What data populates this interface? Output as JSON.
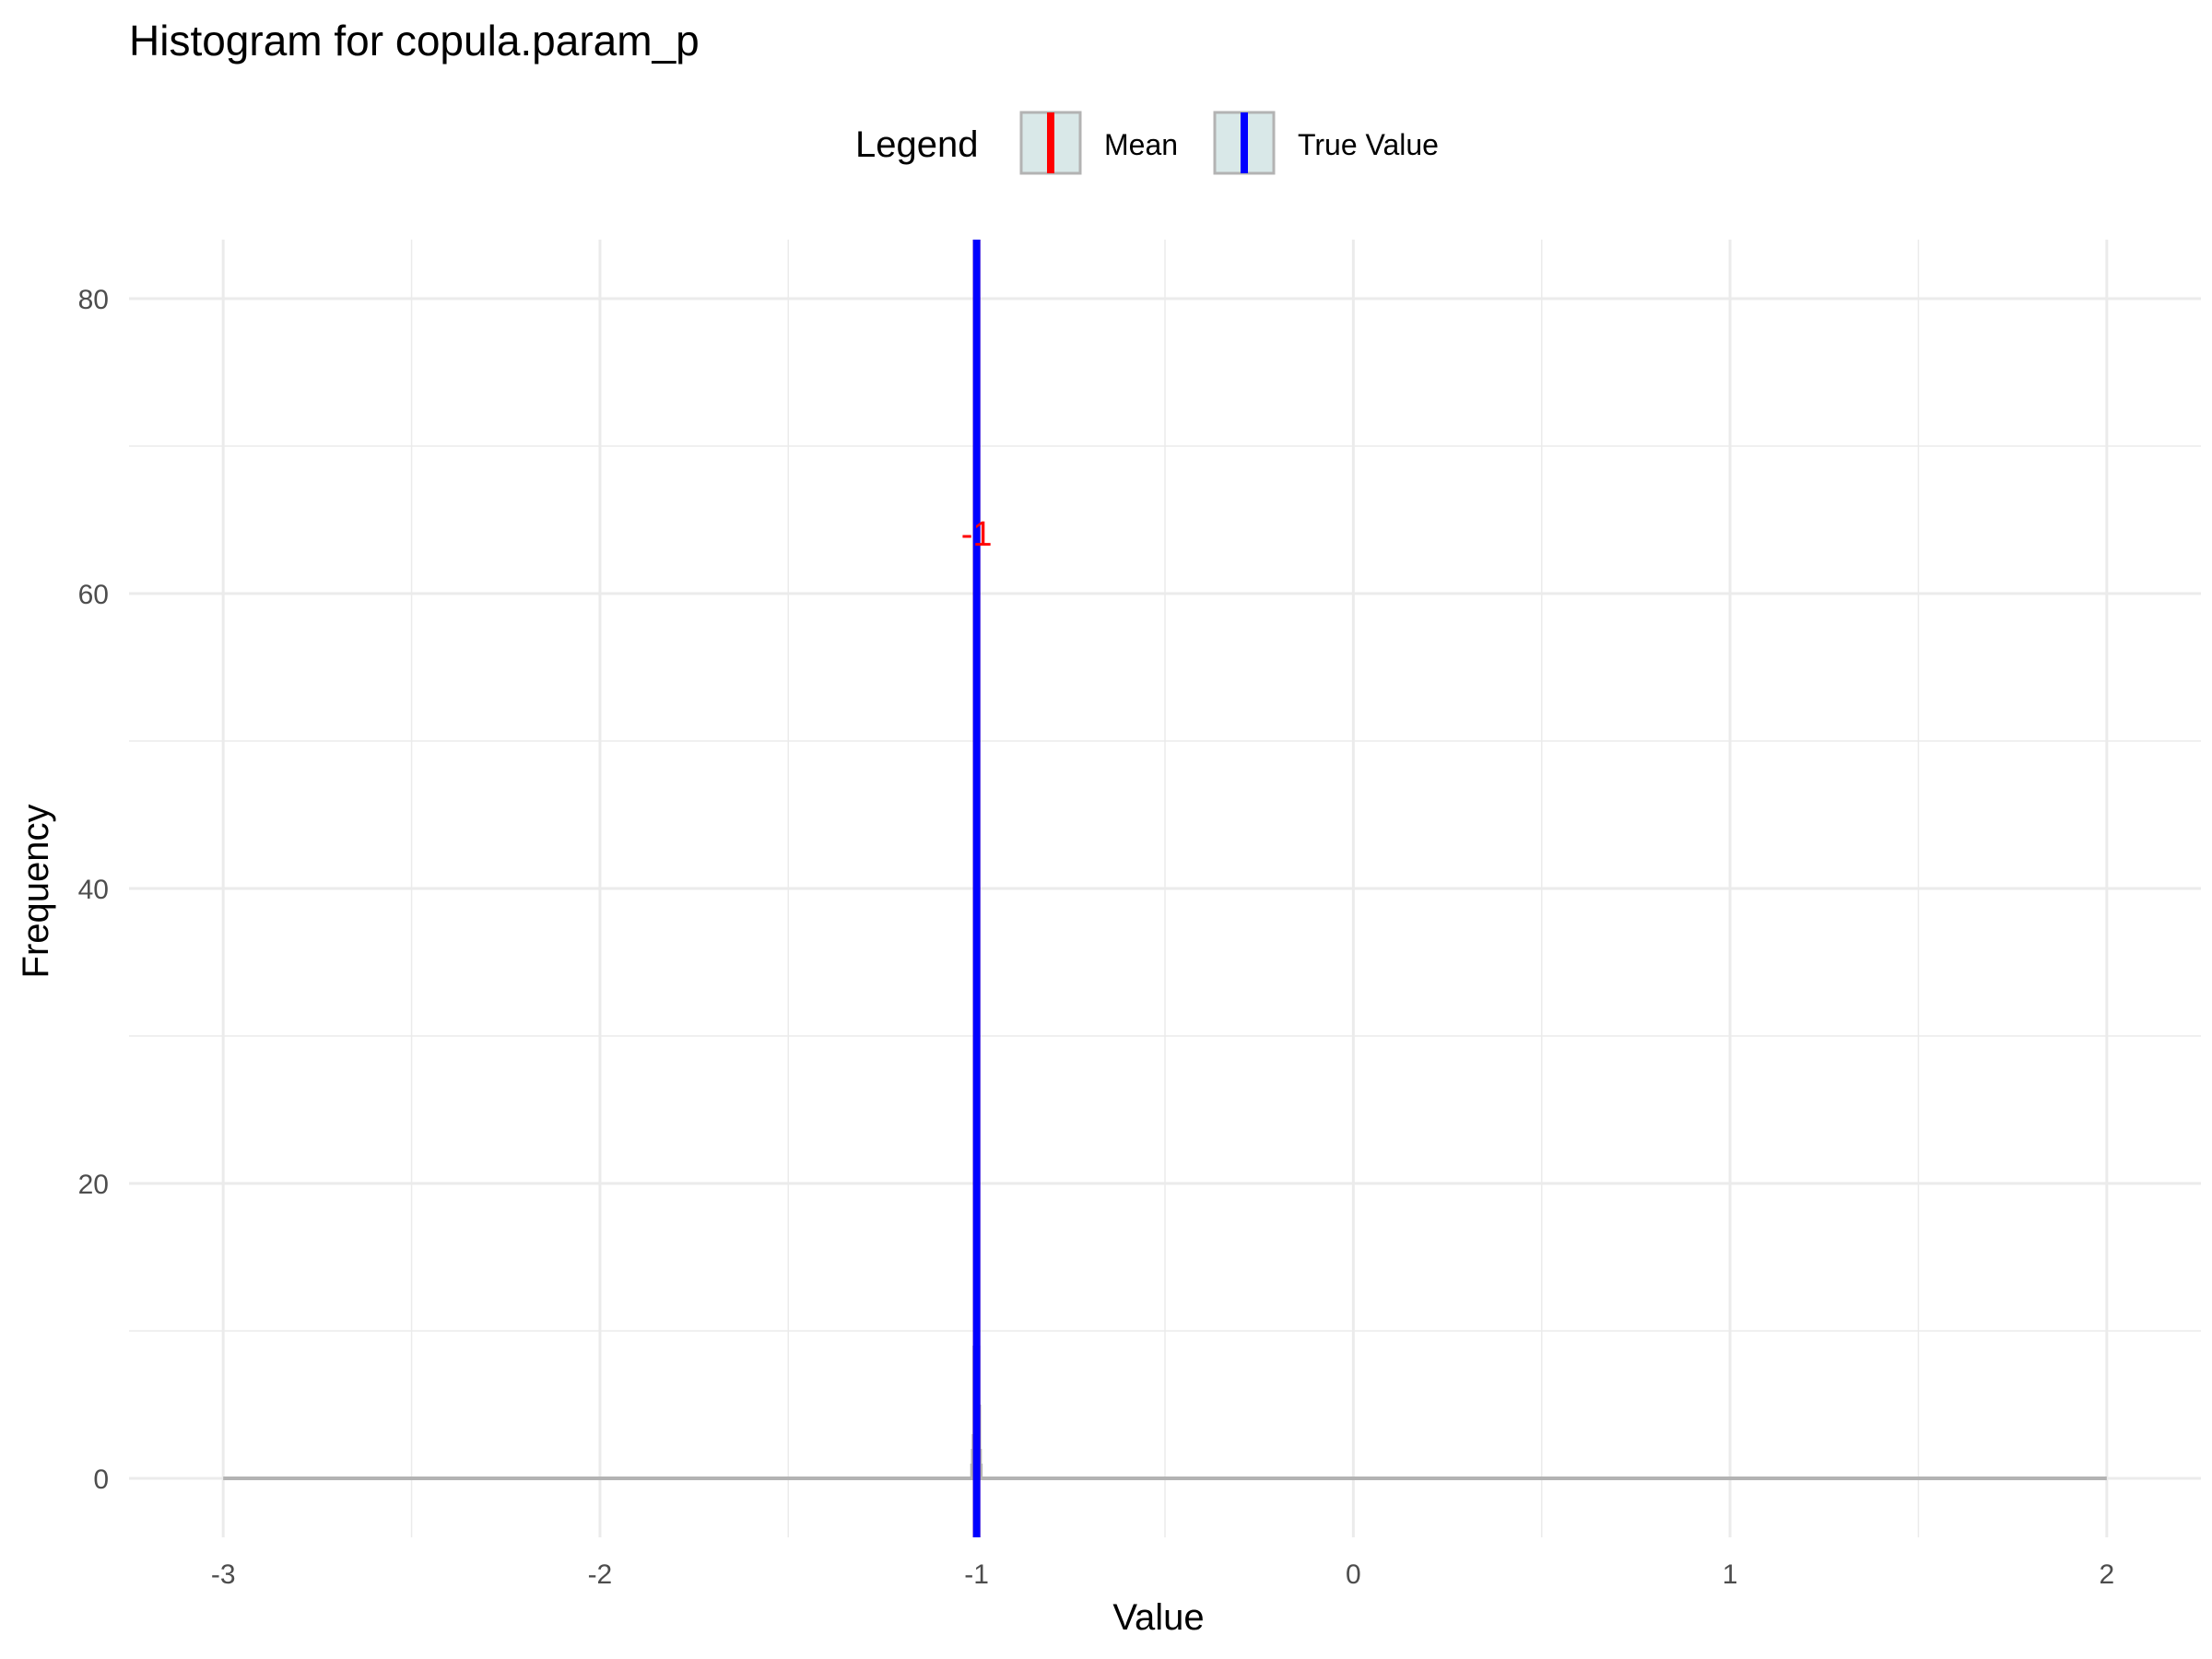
{
  "chart_data": {
    "type": "bar",
    "title": "Histogram for copula.param_p",
    "xlabel": "Value",
    "ylabel": "Frequency",
    "xlim": [
      -3.25,
      2.25
    ],
    "ylim": [
      -4,
      84
    ],
    "x_ticks": [
      -3,
      -2,
      -1,
      0,
      1,
      2
    ],
    "x_tick_labels": [
      "-3",
      "-2",
      "-1",
      "0",
      "1",
      "2"
    ],
    "y_ticks": [
      0,
      20,
      40,
      60,
      80
    ],
    "y_tick_labels": [
      "0",
      "20",
      "40",
      "60",
      "80"
    ],
    "grid": true,
    "bin_width": 0.002,
    "bins": [
      {
        "x": -1.016,
        "count": 1
      },
      {
        "x": -1.014,
        "count": 2
      },
      {
        "x": -1.012,
        "count": 3
      },
      {
        "x": -1.01,
        "count": 9
      },
      {
        "x": -1.008,
        "count": 22
      },
      {
        "x": -1.006,
        "count": 33
      },
      {
        "x": -1.004,
        "count": 44
      },
      {
        "x": -1.002,
        "count": 58
      },
      {
        "x": -1.0,
        "count": 65
      },
      {
        "x": -0.998,
        "count": 42
      },
      {
        "x": -0.996,
        "count": 31
      },
      {
        "x": -0.994,
        "count": 16
      },
      {
        "x": -0.992,
        "count": 9
      },
      {
        "x": -0.99,
        "count": 5
      },
      {
        "x": -0.988,
        "count": 2
      },
      {
        "x": -0.986,
        "count": 1
      }
    ],
    "baseline_range": [
      -3,
      2
    ],
    "legend": {
      "title": "Legend",
      "placement": "top",
      "items": [
        {
          "label": "Mean",
          "color": "#ff0000"
        },
        {
          "label": "True Value",
          "color": "#0000ff"
        }
      ]
    },
    "vlines": [
      {
        "name": "Mean",
        "x": -1.0,
        "color": "#ff0000"
      },
      {
        "name": "True Value",
        "x": -1.0,
        "color": "#0000ff"
      }
    ],
    "annotation": {
      "text": "-1",
      "x": -1.0,
      "y": 64,
      "color": "#ff0000"
    },
    "colors": {
      "bar": "#b3b3b3",
      "grid": "#ebebeb",
      "legend_key_fill": "#d9e8e8",
      "legend_key_border": "#b3b3b3"
    }
  }
}
